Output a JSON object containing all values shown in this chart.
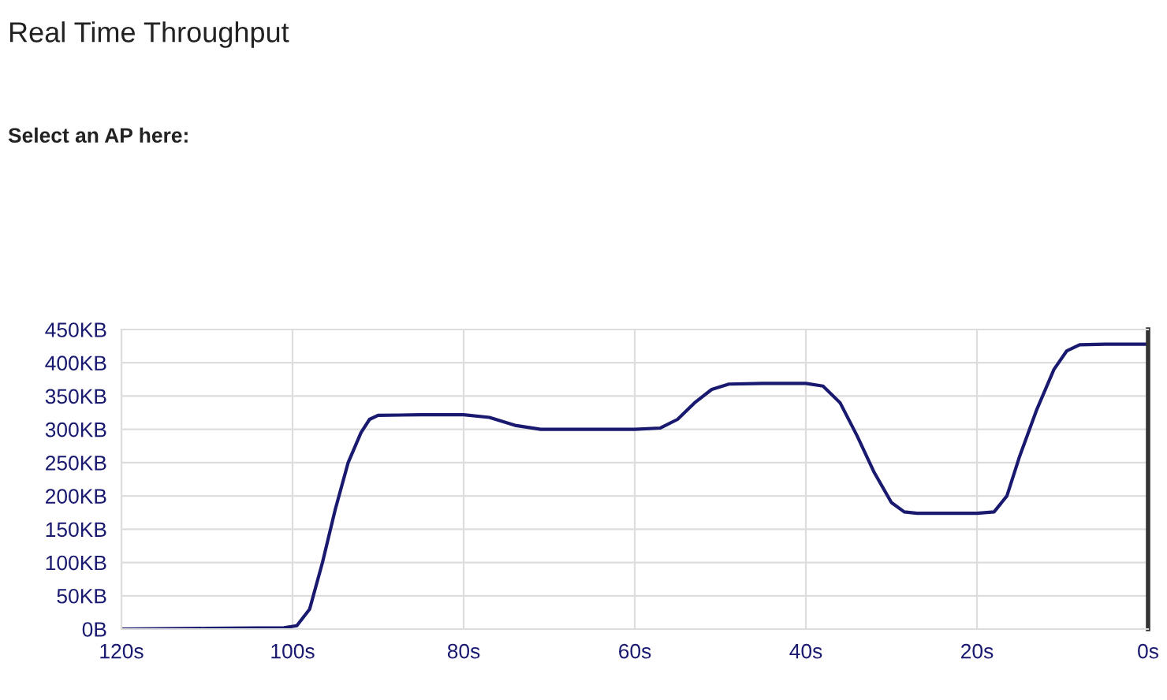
{
  "chart_data": {
    "type": "line",
    "title": "Real Time Throughput",
    "annotations": [
      "Select an AP here:"
    ],
    "x": [
      120,
      110,
      101,
      99.5,
      98,
      96.5,
      95,
      93.5,
      92,
      91,
      90,
      85,
      80,
      77,
      74,
      71,
      65,
      60,
      57,
      55,
      53,
      51,
      49,
      45,
      40,
      38,
      36,
      34,
      32,
      30,
      28.5,
      27,
      20,
      18,
      16.5,
      15,
      13,
      11,
      9.5,
      8,
      5,
      0
    ],
    "series": [
      {
        "color": "#191970",
        "values": [
          0,
          1,
          2,
          5,
          30,
          100,
          180,
          250,
          295,
          315,
          321,
          322,
          322,
          318,
          306,
          300,
          300,
          300,
          302,
          315,
          340,
          360,
          368,
          369,
          369,
          365,
          340,
          290,
          235,
          190,
          176,
          174,
          174,
          176,
          200,
          260,
          330,
          390,
          418,
          427,
          428,
          428
        ]
      }
    ],
    "xlim": [
      120,
      0
    ],
    "xticks": [
      {
        "value": 120,
        "label": "120s"
      },
      {
        "value": 100,
        "label": "100s"
      },
      {
        "value": 80,
        "label": "80s"
      },
      {
        "value": 60,
        "label": "60s"
      },
      {
        "value": 40,
        "label": "40s"
      },
      {
        "value": 20,
        "label": "20s"
      },
      {
        "value": 0,
        "label": "0s"
      }
    ],
    "ylim": [
      0,
      450
    ],
    "yticks": [
      {
        "value": 0,
        "label": "0B"
      },
      {
        "value": 50,
        "label": "50KB"
      },
      {
        "value": 100,
        "label": "100KB"
      },
      {
        "value": 150,
        "label": "150KB"
      },
      {
        "value": 200,
        "label": "200KB"
      },
      {
        "value": 250,
        "label": "250KB"
      },
      {
        "value": 300,
        "label": "300KB"
      },
      {
        "value": 350,
        "label": "350KB"
      },
      {
        "value": 400,
        "label": "400KB"
      },
      {
        "value": 450,
        "label": "450KB"
      }
    ],
    "grid": true,
    "marker": "none",
    "line_style": "solid",
    "legend": false
  }
}
